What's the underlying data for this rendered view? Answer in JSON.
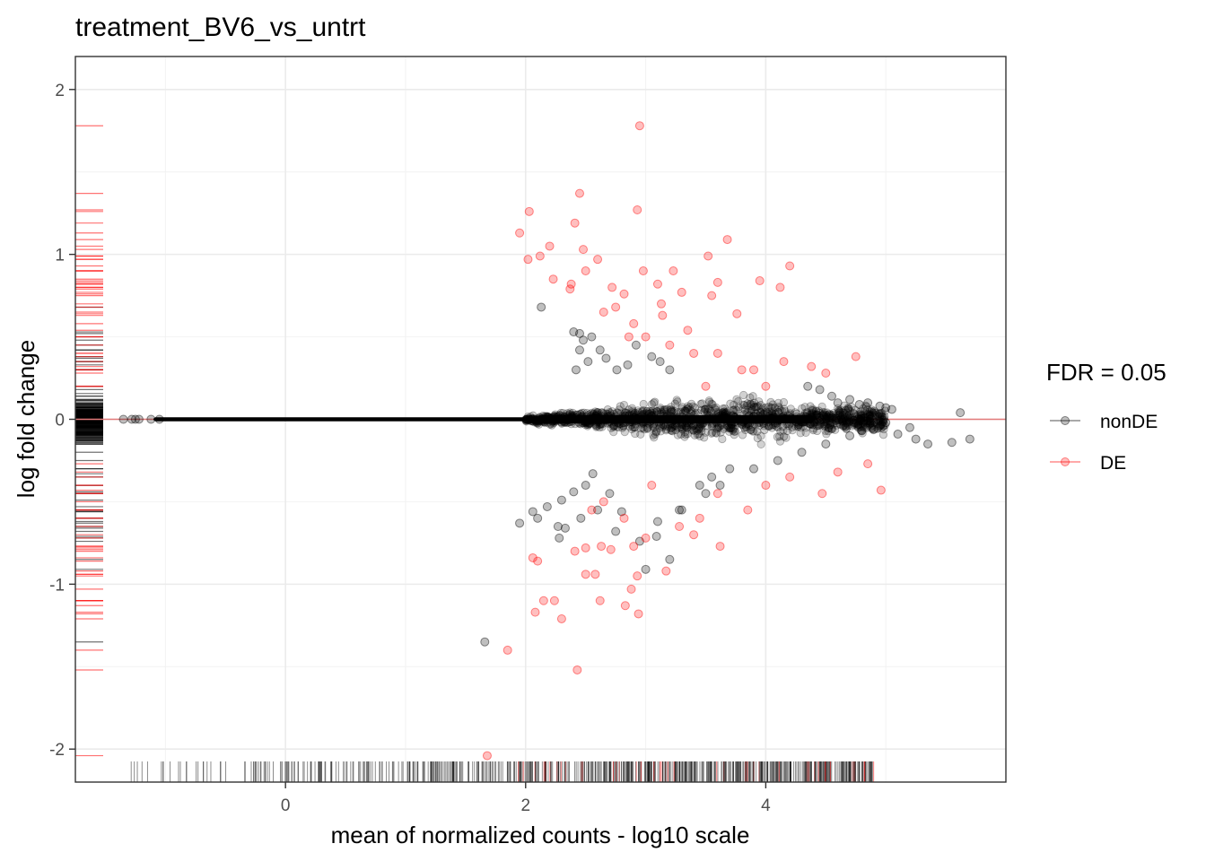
{
  "chart_data": {
    "type": "scatter",
    "title": "treatment_BV6_vs_untrt",
    "xlabel": "mean of normalized counts - log10 scale",
    "ylabel": "log fold change",
    "xlim": [
      -1.75,
      6.0
    ],
    "ylim": [
      -2.2,
      2.2
    ],
    "x_ticks": [
      0,
      2,
      4
    ],
    "y_ticks": [
      -2,
      -1,
      0,
      1,
      2
    ],
    "x_tick_labels": [
      "0",
      "2",
      "4"
    ],
    "y_tick_labels": [
      "-2",
      "-1",
      "0",
      "1",
      "2"
    ],
    "grid": true,
    "reference_line": {
      "y": 0,
      "color": "#e37a7a"
    },
    "rug": {
      "x_axis": "bottom",
      "y_axis": "left"
    },
    "legend": {
      "title": "FDR = 0.05",
      "position": "right",
      "entries": [
        {
          "label": "nonDE",
          "color": "#000000"
        },
        {
          "label": "DE",
          "color": "#ff0000"
        }
      ]
    },
    "series": [
      {
        "name": "nonDE",
        "color": "#000000",
        "points": [
          [
            -1.35,
            0.0
          ],
          [
            -1.28,
            0.0
          ],
          [
            -1.25,
            0.0
          ],
          [
            -1.22,
            0.0
          ],
          [
            -1.12,
            0.0
          ],
          [
            -1.05,
            0.0
          ],
          [
            1.66,
            -1.35
          ],
          [
            1.95,
            -0.63
          ],
          [
            2.06,
            -0.56
          ],
          [
            2.1,
            -0.6
          ],
          [
            2.18,
            -0.53
          ],
          [
            2.3,
            -0.49
          ],
          [
            2.27,
            -0.65
          ],
          [
            2.4,
            -0.44
          ],
          [
            2.46,
            -0.6
          ],
          [
            2.5,
            -0.4
          ],
          [
            2.56,
            -0.33
          ],
          [
            2.6,
            -0.55
          ],
          [
            2.7,
            -0.45
          ],
          [
            2.8,
            -0.56
          ],
          [
            2.28,
            -0.72
          ],
          [
            2.33,
            -0.66
          ],
          [
            2.13,
            0.68
          ],
          [
            2.4,
            0.53
          ],
          [
            2.45,
            0.52
          ],
          [
            2.48,
            0.48
          ],
          [
            2.55,
            0.5
          ],
          [
            2.62,
            0.42
          ],
          [
            2.67,
            0.37
          ],
          [
            2.76,
            0.3
          ],
          [
            2.85,
            0.33
          ],
          [
            2.92,
            0.45
          ],
          [
            3.05,
            0.38
          ],
          [
            3.12,
            0.35
          ],
          [
            3.2,
            0.3
          ],
          [
            2.45,
            0.42
          ],
          [
            2.52,
            0.35
          ],
          [
            2.42,
            0.3
          ],
          [
            3.3,
            -0.55
          ],
          [
            3.45,
            -0.4
          ],
          [
            3.5,
            -0.45
          ],
          [
            3.55,
            -0.35
          ],
          [
            3.62,
            -0.4
          ],
          [
            3.7,
            -0.3
          ],
          [
            3.9,
            -0.3
          ],
          [
            4.1,
            -0.25
          ],
          [
            4.3,
            -0.2
          ],
          [
            4.5,
            -0.15
          ],
          [
            3.2,
            -0.85
          ],
          [
            3.09,
            -0.71
          ],
          [
            2.95,
            -0.74
          ],
          [
            3.1,
            -0.62
          ],
          [
            3.0,
            -0.91
          ],
          [
            3.28,
            -0.55
          ],
          [
            2.75,
            -0.68
          ],
          [
            4.35,
            0.2
          ],
          [
            4.45,
            0.18
          ],
          [
            4.55,
            0.14
          ],
          [
            4.6,
            0.1
          ],
          [
            4.7,
            0.12
          ],
          [
            4.78,
            0.09
          ],
          [
            4.85,
            0.1
          ],
          [
            4.95,
            0.08
          ],
          [
            5.0,
            0.07
          ],
          [
            5.05,
            0.06
          ],
          [
            4.7,
            -0.1
          ],
          [
            4.8,
            -0.07
          ],
          [
            4.9,
            -0.06
          ],
          [
            5.1,
            -0.09
          ],
          [
            5.25,
            -0.12
          ],
          [
            5.35,
            -0.15
          ],
          [
            5.55,
            -0.14
          ],
          [
            5.7,
            -0.12
          ],
          [
            5.62,
            0.04
          ],
          [
            5.2,
            -0.05
          ],
          [
            5.0,
            -0.02
          ]
        ]
      },
      {
        "name": "DE",
        "color": "#ff0000",
        "points": [
          [
            2.95,
            1.78
          ],
          [
            2.45,
            1.37
          ],
          [
            2.93,
            1.27
          ],
          [
            2.03,
            1.26
          ],
          [
            2.41,
            1.19
          ],
          [
            1.95,
            1.13
          ],
          [
            2.2,
            1.05
          ],
          [
            2.48,
            1.03
          ],
          [
            3.68,
            1.09
          ],
          [
            2.12,
            0.99
          ],
          [
            2.02,
            0.97
          ],
          [
            2.6,
            0.97
          ],
          [
            3.52,
            0.99
          ],
          [
            2.5,
            0.9
          ],
          [
            2.98,
            0.9
          ],
          [
            3.23,
            0.9
          ],
          [
            3.95,
            0.84
          ],
          [
            4.2,
            0.93
          ],
          [
            4.12,
            0.8
          ],
          [
            2.23,
            0.85
          ],
          [
            2.38,
            0.82
          ],
          [
            3.6,
            0.83
          ],
          [
            3.1,
            0.82
          ],
          [
            3.55,
            0.75
          ],
          [
            2.37,
            0.79
          ],
          [
            2.72,
            0.8
          ],
          [
            2.82,
            0.76
          ],
          [
            3.3,
            0.77
          ],
          [
            2.65,
            0.65
          ],
          [
            2.75,
            0.68
          ],
          [
            3.14,
            0.63
          ],
          [
            3.13,
            0.7
          ],
          [
            3.76,
            0.64
          ],
          [
            2.9,
            0.58
          ],
          [
            3.35,
            0.54
          ],
          [
            3.6,
            0.4
          ],
          [
            3.9,
            0.3
          ],
          [
            4.15,
            0.35
          ],
          [
            4.38,
            0.32
          ],
          [
            4.5,
            0.28
          ],
          [
            4.75,
            0.38
          ],
          [
            3.0,
            0.5
          ],
          [
            3.2,
            0.45
          ],
          [
            3.4,
            0.4
          ],
          [
            3.8,
            0.3
          ],
          [
            4.0,
            0.2
          ],
          [
            3.5,
            0.2
          ],
          [
            2.86,
            0.5
          ],
          [
            1.68,
            -2.04
          ],
          [
            2.43,
            -1.52
          ],
          [
            1.85,
            -1.4
          ],
          [
            2.3,
            -1.21
          ],
          [
            2.08,
            -1.17
          ],
          [
            2.24,
            -1.1
          ],
          [
            2.15,
            -1.1
          ],
          [
            2.62,
            -1.1
          ],
          [
            2.83,
            -1.13
          ],
          [
            2.94,
            -1.18
          ],
          [
            2.88,
            -1.03
          ],
          [
            2.93,
            -0.95
          ],
          [
            2.5,
            -0.94
          ],
          [
            2.58,
            -0.94
          ],
          [
            3.17,
            -0.92
          ],
          [
            2.06,
            -0.84
          ],
          [
            2.1,
            -0.86
          ],
          [
            2.9,
            -0.77
          ],
          [
            2.41,
            -0.8
          ],
          [
            2.5,
            -0.78
          ],
          [
            2.63,
            -0.77
          ],
          [
            2.71,
            -0.79
          ],
          [
            3.62,
            -0.77
          ],
          [
            3.0,
            -0.72
          ],
          [
            3.28,
            -0.65
          ],
          [
            3.4,
            -0.7
          ],
          [
            3.45,
            -0.6
          ],
          [
            3.85,
            -0.55
          ],
          [
            2.55,
            -0.55
          ],
          [
            2.65,
            -0.5
          ],
          [
            2.82,
            -0.6
          ],
          [
            3.05,
            -0.4
          ],
          [
            3.6,
            -0.45
          ],
          [
            4.0,
            -0.4
          ],
          [
            4.2,
            -0.35
          ],
          [
            4.47,
            -0.45
          ],
          [
            4.96,
            -0.43
          ],
          [
            4.6,
            -0.32
          ],
          [
            4.85,
            -0.27
          ]
        ]
      }
    ]
  }
}
